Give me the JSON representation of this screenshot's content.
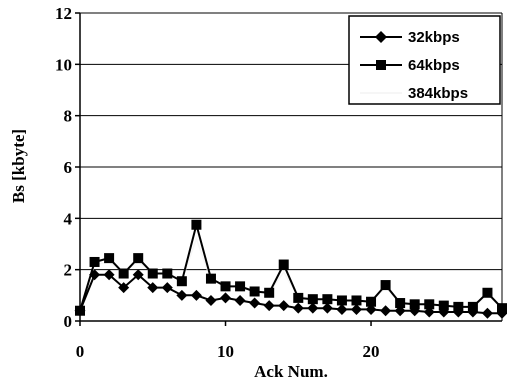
{
  "chart_data": {
    "type": "line",
    "title": "",
    "xlabel": "Ack Num.",
    "ylabel": "Bs [kbyte]",
    "xlim": [
      0,
      29
    ],
    "ylim": [
      0,
      12
    ],
    "xticks": [
      0,
      10,
      20
    ],
    "yticks": [
      0,
      2,
      4,
      6,
      8,
      10,
      12
    ],
    "grid": "horizontal",
    "legend": "top-right",
    "series": [
      {
        "name": "32kbps",
        "marker": "diamond",
        "color": "#000000",
        "x": [
          0,
          1,
          2,
          3,
          4,
          5,
          6,
          7,
          8,
          9,
          10,
          11,
          12,
          13,
          14,
          15,
          16,
          17,
          18,
          19,
          20,
          21,
          22,
          23,
          24,
          25,
          26,
          27,
          28,
          29
        ],
        "y": [
          0.4,
          1.8,
          1.8,
          1.3,
          1.8,
          1.3,
          1.3,
          1.0,
          1.0,
          0.8,
          0.9,
          0.8,
          0.7,
          0.6,
          0.6,
          0.5,
          0.5,
          0.5,
          0.45,
          0.45,
          0.45,
          0.4,
          0.4,
          0.4,
          0.35,
          0.35,
          0.35,
          0.35,
          0.3,
          0.3
        ]
      },
      {
        "name": "64kbps",
        "marker": "square",
        "color": "#000000",
        "x": [
          0,
          1,
          2,
          3,
          4,
          5,
          6,
          7,
          8,
          9,
          10,
          11,
          12,
          13,
          14,
          15,
          16,
          17,
          18,
          19,
          20,
          21,
          22,
          23,
          24,
          25,
          26,
          27,
          28,
          29
        ],
        "y": [
          0.4,
          2.3,
          2.45,
          1.85,
          2.45,
          1.85,
          1.85,
          1.55,
          3.75,
          1.65,
          1.35,
          1.35,
          1.15,
          1.1,
          2.2,
          0.9,
          0.85,
          0.85,
          0.8,
          0.8,
          0.75,
          1.4,
          0.7,
          0.65,
          0.65,
          0.6,
          0.55,
          0.55,
          1.1,
          0.5
        ]
      },
      {
        "name": "384kbps",
        "marker": "none",
        "color": "#f6f6f6",
        "x": [
          0,
          1,
          2,
          3,
          4,
          5,
          6,
          7,
          8,
          9,
          10,
          11,
          12,
          13,
          14,
          15,
          16,
          17,
          18,
          19,
          20,
          21,
          22,
          23,
          24,
          25,
          26,
          27,
          28,
          29
        ],
        "y": [
          0.4,
          2.2,
          2.3,
          1.9,
          2.3,
          1.9,
          1.8,
          1.6,
          3.2,
          1.6,
          1.4,
          1.3,
          1.2,
          1.1,
          1.9,
          0.95,
          0.9,
          0.85,
          0.8,
          0.8,
          0.75,
          1.3,
          0.7,
          0.65,
          0.6,
          0.6,
          0.55,
          0.55,
          1.0,
          0.5
        ]
      }
    ]
  }
}
